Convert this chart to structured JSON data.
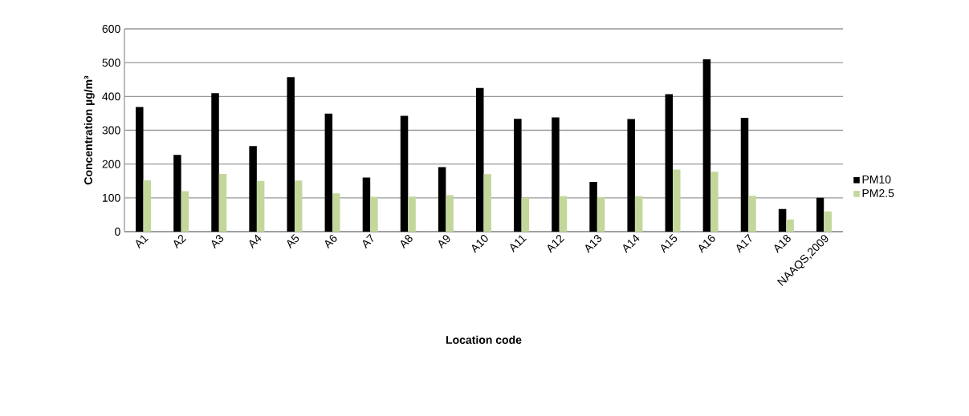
{
  "chart_data": {
    "type": "bar",
    "xlabel": "Location code",
    "ylabel": "Concentration µg/m³",
    "categories": [
      "A1",
      "A2",
      "A3",
      "A4",
      "A5",
      "A6",
      "A7",
      "A8",
      "A9",
      "A10",
      "A11",
      "A12",
      "A13",
      "A14",
      "A15",
      "A16",
      "A17",
      "A18",
      "NAAQS,2009"
    ],
    "series": [
      {
        "name": "PM10",
        "color": "#000000",
        "values": [
          369,
          227,
          410,
          253,
          457,
          349,
          160,
          343,
          191,
          425,
          334,
          338,
          147,
          333,
          407,
          510,
          337,
          67,
          100
        ]
      },
      {
        "name": "PM2.5",
        "color": "#c4d79b",
        "values": [
          152,
          120,
          171,
          150,
          151,
          113,
          103,
          104,
          108,
          170,
          100,
          105,
          102,
          105,
          184,
          177,
          106,
          36,
          60
        ]
      }
    ],
    "ylim": [
      0,
      600
    ],
    "yticks": [
      0,
      100,
      200,
      300,
      400,
      500,
      600
    ],
    "grid": "y",
    "legend": "right"
  }
}
